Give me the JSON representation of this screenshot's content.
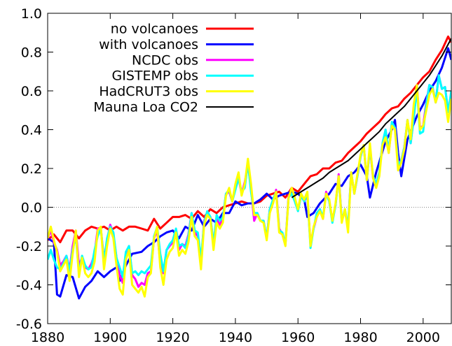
{
  "chart_data": {
    "type": "line",
    "title": "",
    "xlabel": "",
    "ylabel": "",
    "xlim": [
      1880,
      2009
    ],
    "ylim": [
      -0.6,
      1.0
    ],
    "xticks": [
      1880,
      1900,
      1920,
      1940,
      1960,
      1980,
      2000
    ],
    "yticks": [
      -0.6,
      -0.4,
      -0.2,
      0.0,
      0.2,
      0.4,
      0.6,
      0.8,
      1.0
    ],
    "xtick_labels": [
      "1880",
      "1900",
      "1920",
      "1940",
      "1960",
      "1980",
      "2000"
    ],
    "ytick_labels": [
      "-0.6",
      "-0.4",
      "-0.2",
      "0.0",
      "0.2",
      "0.4",
      "0.6",
      "0.8",
      "1.0"
    ],
    "zero_line": true,
    "grid": false,
    "legend_position": "top-left",
    "series": [
      {
        "name": "no volcanoes",
        "color": "#ff0000",
        "x": [
          1880,
          1882,
          1884,
          1886,
          1888,
          1890,
          1892,
          1894,
          1896,
          1898,
          1900,
          1902,
          1904,
          1906,
          1908,
          1910,
          1912,
          1914,
          1916,
          1918,
          1920,
          1922,
          1924,
          1926,
          1928,
          1930,
          1932,
          1934,
          1936,
          1938,
          1940,
          1942,
          1944,
          1946,
          1948,
          1950,
          1952,
          1954,
          1956,
          1958,
          1960,
          1962,
          1964,
          1966,
          1968,
          1970,
          1972,
          1974,
          1976,
          1978,
          1980,
          1982,
          1984,
          1986,
          1988,
          1990,
          1992,
          1994,
          1996,
          1998,
          2000,
          2002,
          2004,
          2006,
          2008,
          2009
        ],
        "y": [
          -0.17,
          -0.14,
          -0.18,
          -0.12,
          -0.12,
          -0.16,
          -0.12,
          -0.1,
          -0.11,
          -0.1,
          -0.12,
          -0.1,
          -0.12,
          -0.1,
          -0.1,
          -0.11,
          -0.12,
          -0.06,
          -0.11,
          -0.08,
          -0.05,
          -0.05,
          -0.04,
          -0.06,
          -0.02,
          -0.05,
          -0.01,
          -0.03,
          0.0,
          0.01,
          0.02,
          0.03,
          0.02,
          0.02,
          0.03,
          0.06,
          0.07,
          0.08,
          0.05,
          0.1,
          0.08,
          0.12,
          0.16,
          0.17,
          0.2,
          0.2,
          0.23,
          0.24,
          0.28,
          0.31,
          0.34,
          0.38,
          0.41,
          0.44,
          0.48,
          0.51,
          0.52,
          0.56,
          0.59,
          0.63,
          0.67,
          0.7,
          0.76,
          0.81,
          0.88,
          0.85
        ]
      },
      {
        "name": "with volcanoes",
        "color": "#0000ff",
        "x": [
          1880,
          1882,
          1883,
          1884,
          1886,
          1888,
          1890,
          1892,
          1894,
          1896,
          1898,
          1900,
          1902,
          1903,
          1905,
          1907,
          1910,
          1912,
          1914,
          1916,
          1918,
          1920,
          1922,
          1924,
          1926,
          1928,
          1930,
          1932,
          1934,
          1936,
          1938,
          1940,
          1942,
          1944,
          1946,
          1948,
          1950,
          1952,
          1954,
          1956,
          1958,
          1960,
          1962,
          1963,
          1965,
          1967,
          1970,
          1972,
          1974,
          1976,
          1978,
          1980,
          1982,
          1983,
          1985,
          1988,
          1990,
          1991,
          1992,
          1993,
          1995,
          1998,
          2000,
          2002,
          2004,
          2006,
          2008,
          2009
        ],
        "y": [
          -0.16,
          -0.18,
          -0.45,
          -0.46,
          -0.35,
          -0.36,
          -0.47,
          -0.41,
          -0.38,
          -0.33,
          -0.36,
          -0.33,
          -0.31,
          -0.38,
          -0.3,
          -0.24,
          -0.23,
          -0.2,
          -0.18,
          -0.15,
          -0.13,
          -0.12,
          -0.16,
          -0.1,
          -0.12,
          -0.04,
          -0.1,
          -0.06,
          -0.08,
          -0.03,
          -0.03,
          0.03,
          0.01,
          0.02,
          0.02,
          0.04,
          0.07,
          0.04,
          0.06,
          0.07,
          0.08,
          0.07,
          0.04,
          -0.05,
          -0.03,
          0.02,
          0.07,
          0.12,
          0.11,
          0.16,
          0.18,
          0.22,
          0.16,
          0.05,
          0.18,
          0.34,
          0.4,
          0.45,
          0.28,
          0.16,
          0.35,
          0.47,
          0.53,
          0.6,
          0.65,
          0.72,
          0.82,
          0.76
        ]
      },
      {
        "name": "NCDC obs",
        "color": "#ff00ff",
        "x": [
          1880,
          1881,
          1882,
          1883,
          1884,
          1885,
          1886,
          1887,
          1888,
          1889,
          1890,
          1891,
          1892,
          1893,
          1894,
          1895,
          1896,
          1897,
          1898,
          1899,
          1900,
          1901,
          1902,
          1903,
          1904,
          1905,
          1906,
          1907,
          1908,
          1909,
          1910,
          1911,
          1912,
          1913,
          1914,
          1915,
          1916,
          1917,
          1918,
          1919,
          1920,
          1921,
          1922,
          1923,
          1924,
          1925,
          1926,
          1927,
          1928,
          1929,
          1930,
          1931,
          1932,
          1933,
          1934,
          1935,
          1936,
          1937,
          1938,
          1939,
          1940,
          1941,
          1942,
          1943,
          1944,
          1945,
          1946,
          1947,
          1948,
          1949,
          1950,
          1951,
          1952,
          1953,
          1954,
          1955,
          1956,
          1957,
          1958,
          1959,
          1960,
          1961,
          1962,
          1963,
          1964,
          1965,
          1966,
          1967,
          1968,
          1969,
          1970,
          1971,
          1972,
          1973,
          1974,
          1975,
          1976,
          1977,
          1978,
          1979,
          1980,
          1981,
          1982,
          1983,
          1984,
          1985,
          1986,
          1987,
          1988,
          1989,
          1990,
          1991,
          1992,
          1993,
          1994,
          1995,
          1996,
          1997,
          1998,
          1999,
          2000,
          2001,
          2002,
          2003,
          2004,
          2005,
          2006,
          2007,
          2008,
          2009
        ],
        "y": [
          -0.16,
          -0.12,
          -0.18,
          -0.22,
          -0.3,
          -0.28,
          -0.25,
          -0.32,
          -0.2,
          -0.12,
          -0.3,
          -0.26,
          -0.31,
          -0.32,
          -0.29,
          -0.24,
          -0.11,
          -0.11,
          -0.27,
          -0.17,
          -0.09,
          -0.14,
          -0.26,
          -0.35,
          -0.39,
          -0.24,
          -0.2,
          -0.35,
          -0.37,
          -0.41,
          -0.39,
          -0.4,
          -0.34,
          -0.33,
          -0.16,
          -0.12,
          -0.29,
          -0.34,
          -0.22,
          -0.2,
          -0.18,
          -0.12,
          -0.22,
          -0.19,
          -0.2,
          -0.14,
          -0.03,
          -0.13,
          -0.15,
          -0.29,
          -0.07,
          -0.03,
          -0.05,
          -0.19,
          -0.06,
          -0.09,
          -0.06,
          0.07,
          0.08,
          0.03,
          0.11,
          0.15,
          0.07,
          0.13,
          0.22,
          0.1,
          -0.07,
          -0.03,
          -0.07,
          -0.07,
          -0.16,
          -0.01,
          0.02,
          0.09,
          -0.11,
          -0.14,
          -0.19,
          0.06,
          0.07,
          0.04,
          -0.01,
          0.06,
          0.03,
          0.06,
          -0.19,
          -0.11,
          -0.05,
          -0.01,
          -0.06,
          0.08,
          0.03,
          -0.07,
          0.01,
          0.17,
          -0.07,
          -0.02,
          -0.1,
          0.18,
          0.07,
          0.16,
          0.26,
          0.32,
          0.14,
          0.31,
          0.15,
          0.12,
          0.18,
          0.32,
          0.4,
          0.28,
          0.43,
          0.41,
          0.23,
          0.24,
          0.31,
          0.45,
          0.33,
          0.46,
          0.63,
          0.41,
          0.42,
          0.54,
          0.63,
          0.62,
          0.54,
          0.68,
          0.61,
          0.62,
          0.49,
          0.59
        ]
      },
      {
        "name": "GISTEMP obs",
        "color": "#00ffff",
        "x": [
          1880,
          1881,
          1882,
          1883,
          1884,
          1885,
          1886,
          1887,
          1888,
          1889,
          1890,
          1891,
          1892,
          1893,
          1894,
          1895,
          1896,
          1897,
          1898,
          1899,
          1900,
          1901,
          1902,
          1903,
          1904,
          1905,
          1906,
          1907,
          1908,
          1909,
          1910,
          1911,
          1912,
          1913,
          1914,
          1915,
          1916,
          1917,
          1918,
          1919,
          1920,
          1921,
          1922,
          1923,
          1924,
          1925,
          1926,
          1927,
          1928,
          1929,
          1930,
          1931,
          1932,
          1933,
          1934,
          1935,
          1936,
          1937,
          1938,
          1939,
          1940,
          1941,
          1942,
          1943,
          1944,
          1945,
          1946,
          1947,
          1948,
          1949,
          1950,
          1951,
          1952,
          1953,
          1954,
          1955,
          1956,
          1957,
          1958,
          1959,
          1960,
          1961,
          1962,
          1963,
          1964,
          1965,
          1966,
          1967,
          1968,
          1969,
          1970,
          1971,
          1972,
          1973,
          1974,
          1975,
          1976,
          1977,
          1978,
          1979,
          1980,
          1981,
          1982,
          1983,
          1984,
          1985,
          1986,
          1987,
          1988,
          1989,
          1990,
          1991,
          1992,
          1993,
          1994,
          1995,
          1996,
          1997,
          1998,
          1999,
          2000,
          2001,
          2002,
          2003,
          2004,
          2005,
          2006,
          2007,
          2008,
          2009
        ],
        "y": [
          -0.27,
          -0.22,
          -0.27,
          -0.31,
          -0.32,
          -0.29,
          -0.25,
          -0.33,
          -0.22,
          -0.15,
          -0.34,
          -0.25,
          -0.3,
          -0.32,
          -0.31,
          -0.22,
          -0.15,
          -0.11,
          -0.28,
          -0.16,
          -0.1,
          -0.13,
          -0.26,
          -0.31,
          -0.36,
          -0.23,
          -0.2,
          -0.34,
          -0.33,
          -0.35,
          -0.33,
          -0.34,
          -0.32,
          -0.3,
          -0.15,
          -0.1,
          -0.24,
          -0.33,
          -0.22,
          -0.19,
          -0.17,
          -0.11,
          -0.2,
          -0.19,
          -0.21,
          -0.15,
          -0.03,
          -0.12,
          -0.13,
          -0.27,
          -0.08,
          -0.02,
          -0.05,
          -0.19,
          -0.04,
          -0.07,
          -0.05,
          0.07,
          0.09,
          0.03,
          0.09,
          0.15,
          0.08,
          0.1,
          0.23,
          0.08,
          -0.03,
          -0.03,
          -0.07,
          -0.07,
          -0.16,
          -0.01,
          0.04,
          0.08,
          -0.12,
          -0.13,
          -0.19,
          0.05,
          0.07,
          0.03,
          -0.02,
          0.06,
          0.03,
          0.07,
          -0.21,
          -0.11,
          -0.03,
          -0.01,
          -0.05,
          0.07,
          0.03,
          -0.08,
          0.01,
          0.16,
          -0.07,
          -0.01,
          -0.1,
          0.18,
          0.07,
          0.16,
          0.26,
          0.32,
          0.14,
          0.31,
          0.16,
          0.12,
          0.18,
          0.33,
          0.4,
          0.29,
          0.44,
          0.41,
          0.22,
          0.24,
          0.31,
          0.45,
          0.33,
          0.46,
          0.61,
          0.38,
          0.39,
          0.53,
          0.63,
          0.62,
          0.54,
          0.68,
          0.61,
          0.62,
          0.49,
          0.6
        ]
      },
      {
        "name": "HadCRUT3 obs",
        "color": "#ffff00",
        "x": [
          1880,
          1881,
          1882,
          1883,
          1884,
          1885,
          1886,
          1887,
          1888,
          1889,
          1890,
          1891,
          1892,
          1893,
          1894,
          1895,
          1896,
          1897,
          1898,
          1899,
          1900,
          1901,
          1902,
          1903,
          1904,
          1905,
          1906,
          1907,
          1908,
          1909,
          1910,
          1911,
          1912,
          1913,
          1914,
          1915,
          1916,
          1917,
          1918,
          1919,
          1920,
          1921,
          1922,
          1923,
          1924,
          1925,
          1926,
          1927,
          1928,
          1929,
          1930,
          1931,
          1932,
          1933,
          1934,
          1935,
          1936,
          1937,
          1938,
          1939,
          1940,
          1941,
          1942,
          1943,
          1944,
          1945,
          1946,
          1947,
          1948,
          1949,
          1950,
          1951,
          1952,
          1953,
          1954,
          1955,
          1956,
          1957,
          1958,
          1959,
          1960,
          1961,
          1962,
          1963,
          1964,
          1965,
          1966,
          1967,
          1968,
          1969,
          1970,
          1971,
          1972,
          1973,
          1974,
          1975,
          1976,
          1977,
          1978,
          1979,
          1980,
          1981,
          1982,
          1983,
          1984,
          1985,
          1986,
          1987,
          1988,
          1989,
          1990,
          1991,
          1992,
          1993,
          1994,
          1995,
          1996,
          1997,
          1998,
          1999,
          2000,
          2001,
          2002,
          2003,
          2004,
          2005,
          2006,
          2007,
          2008,
          2009
        ],
        "y": [
          -0.16,
          -0.1,
          -0.17,
          -0.23,
          -0.33,
          -0.3,
          -0.27,
          -0.38,
          -0.24,
          -0.12,
          -0.36,
          -0.26,
          -0.34,
          -0.36,
          -0.34,
          -0.28,
          -0.12,
          -0.1,
          -0.32,
          -0.2,
          -0.11,
          -0.16,
          -0.3,
          -0.42,
          -0.45,
          -0.27,
          -0.22,
          -0.4,
          -0.42,
          -0.44,
          -0.41,
          -0.46,
          -0.36,
          -0.34,
          -0.16,
          -0.1,
          -0.31,
          -0.4,
          -0.27,
          -0.23,
          -0.21,
          -0.13,
          -0.25,
          -0.22,
          -0.24,
          -0.18,
          -0.05,
          -0.15,
          -0.17,
          -0.32,
          -0.09,
          -0.04,
          -0.06,
          -0.22,
          -0.08,
          -0.11,
          -0.08,
          0.06,
          0.1,
          0.03,
          0.12,
          0.18,
          0.06,
          0.12,
          0.25,
          0.12,
          -0.04,
          -0.04,
          -0.07,
          -0.08,
          -0.17,
          -0.03,
          0.02,
          0.08,
          -0.13,
          -0.14,
          -0.2,
          0.05,
          0.1,
          0.05,
          -0.01,
          0.07,
          0.04,
          0.08,
          -0.2,
          -0.1,
          -0.05,
          -0.02,
          -0.06,
          0.07,
          0.04,
          -0.07,
          0.02,
          0.16,
          -0.08,
          -0.01,
          -0.13,
          0.18,
          0.07,
          0.17,
          0.27,
          0.32,
          0.14,
          0.33,
          0.15,
          0.1,
          0.16,
          0.32,
          0.36,
          0.28,
          0.42,
          0.4,
          0.19,
          0.23,
          0.3,
          0.45,
          0.35,
          0.53,
          0.63,
          0.4,
          0.42,
          0.5,
          0.58,
          0.61,
          0.54,
          0.59,
          0.58,
          0.55,
          0.44,
          0.56
        ]
      },
      {
        "name": "Mauna Loa CO2",
        "color": "#000000",
        "x": [
          1958,
          1960,
          1962,
          1964,
          1966,
          1968,
          1970,
          1972,
          1974,
          1976,
          1978,
          1980,
          1982,
          1984,
          1986,
          1988,
          1990,
          1992,
          1994,
          1996,
          1998,
          2000,
          2002,
          2004,
          2006,
          2008,
          2009
        ],
        "y": [
          0.05,
          0.07,
          0.09,
          0.11,
          0.13,
          0.15,
          0.18,
          0.2,
          0.22,
          0.24,
          0.27,
          0.3,
          0.33,
          0.36,
          0.39,
          0.43,
          0.46,
          0.49,
          0.52,
          0.56,
          0.6,
          0.64,
          0.68,
          0.73,
          0.78,
          0.84,
          0.87
        ]
      }
    ]
  }
}
